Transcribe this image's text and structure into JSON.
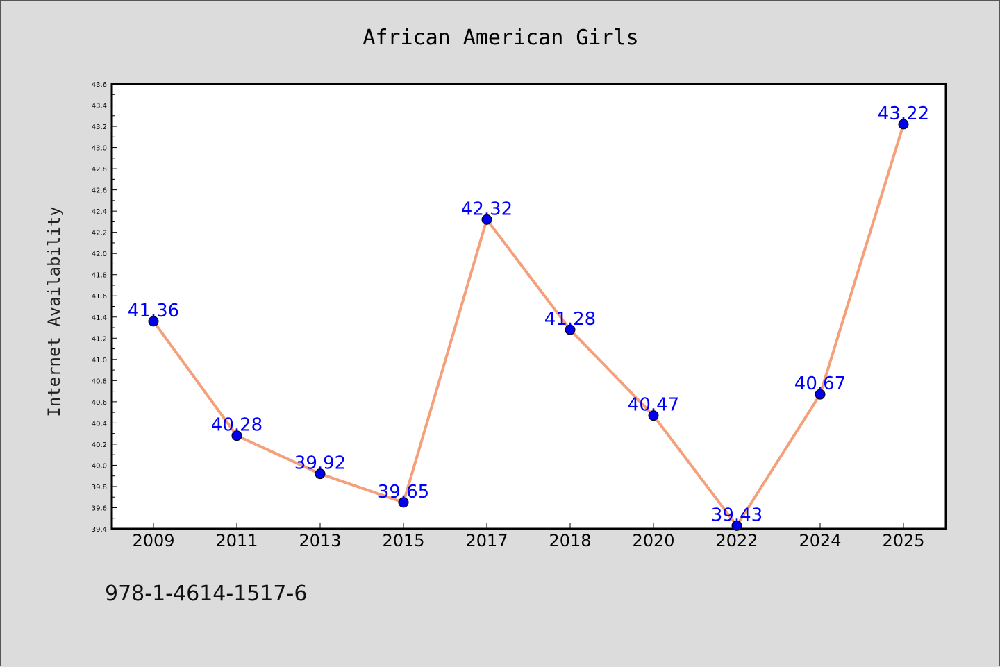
{
  "chart_data": {
    "type": "line",
    "title": "African American Girls",
    "ylabel": "Internet Availability",
    "xlabel": "",
    "categories": [
      "2009",
      "2011",
      "2013",
      "2015",
      "2017",
      "2018",
      "2020",
      "2022",
      "2024",
      "2025"
    ],
    "series": [
      {
        "values": [
          41.36,
          40.28,
          39.92,
          39.65,
          42.32,
          41.28,
          40.47,
          39.43,
          40.67,
          43.22
        ]
      }
    ],
    "data_labels": [
      "41.36",
      "40.28",
      "39.92",
      "39.65",
      "42.32",
      "41.28",
      "40.47",
      "39.43",
      "40.67",
      "43.22"
    ],
    "ylim": [
      39.4,
      43.6
    ],
    "yticks": [
      "39.4",
      "39.6",
      "39.8",
      "40.0",
      "40.2",
      "40.4",
      "40.6",
      "40.8",
      "41.0",
      "41.2",
      "41.4",
      "41.6",
      "41.8",
      "42.0",
      "42.2",
      "42.4",
      "42.6",
      "42.8",
      "43.0",
      "43.2",
      "43.4",
      "43.6"
    ],
    "grid": false,
    "legend": "none",
    "colors": {
      "line": "#f4a07a",
      "marker": "#0000ee",
      "labels": "#0000ff",
      "background": "#dcdcdc",
      "plot_area": "#ffffff"
    }
  },
  "footnote": "978-1-4614-1517-6"
}
